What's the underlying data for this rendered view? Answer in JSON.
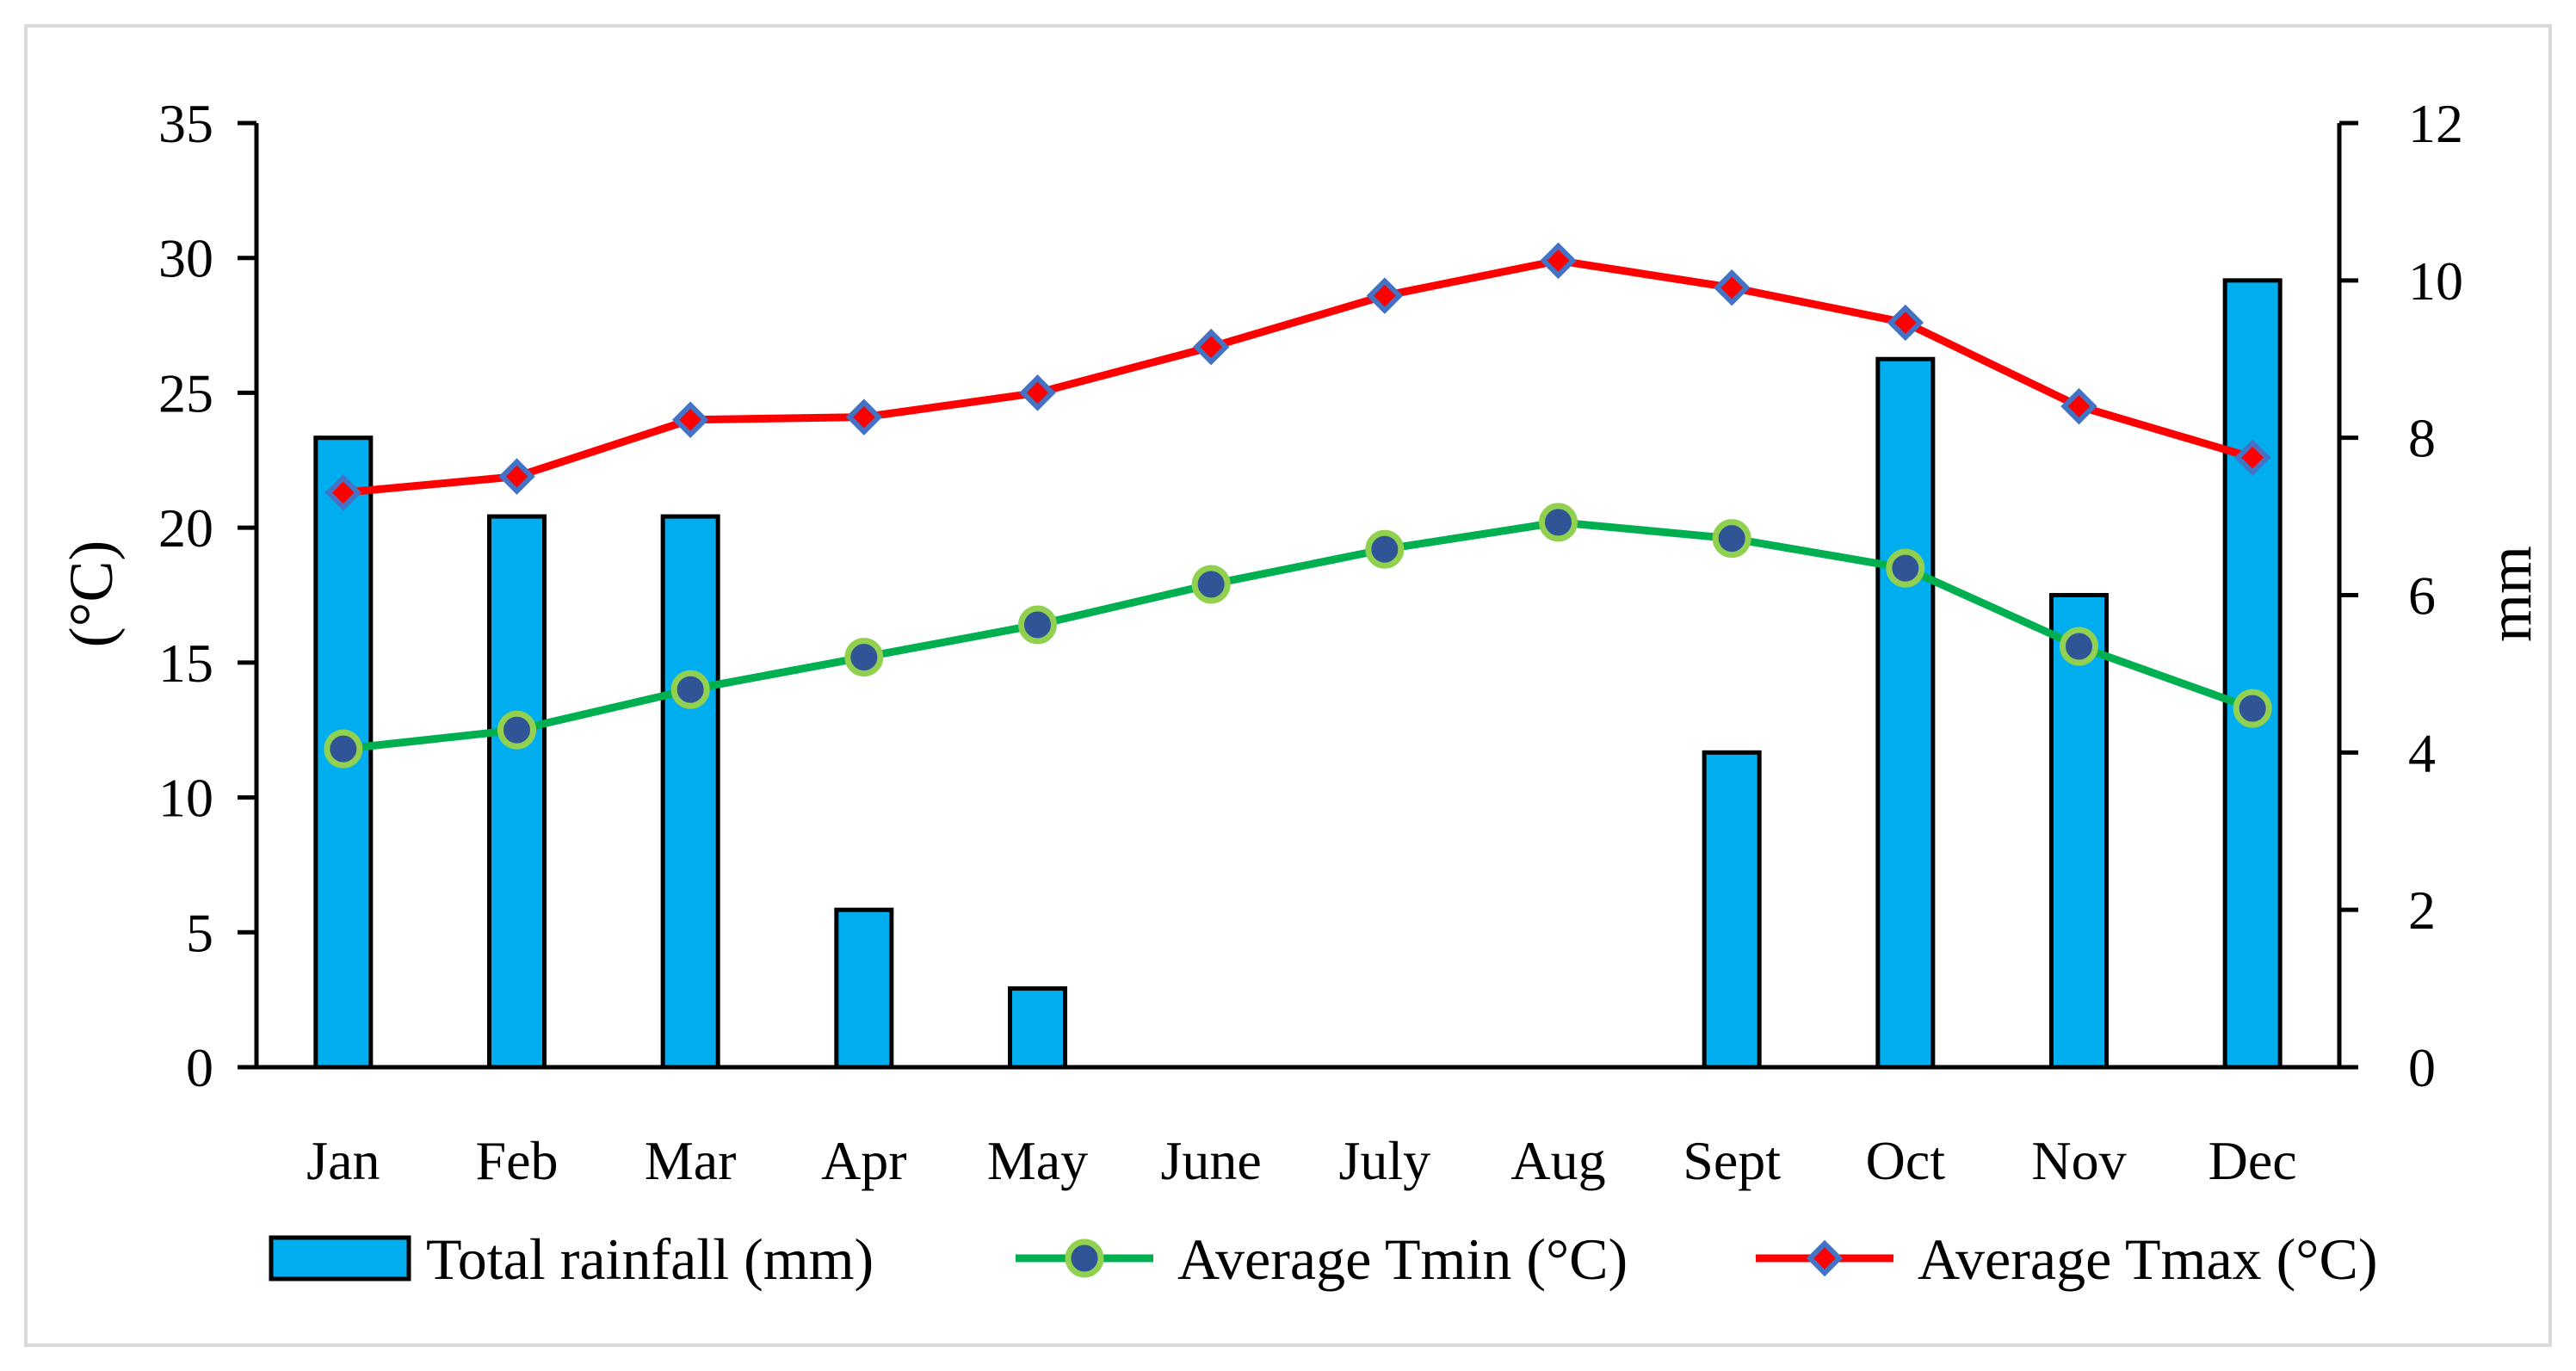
{
  "chart_data": {
    "type": "bar+line",
    "title": "",
    "categories": [
      "Jan",
      "Feb",
      "Mar",
      "Apr",
      "May",
      "June",
      "July",
      "Aug",
      "Sept",
      "Oct",
      "Nov",
      "Dec"
    ],
    "y_left": {
      "label": "(°C)",
      "range": [
        0,
        35
      ],
      "ticks": [
        0,
        5,
        10,
        15,
        20,
        25,
        30,
        35
      ],
      "tick_labels": [
        "0",
        "5",
        "10",
        "15",
        "20",
        "25",
        "30",
        "35"
      ]
    },
    "y_right": {
      "label": "mm",
      "range": [
        0,
        12
      ],
      "ticks": [
        0,
        2,
        4,
        6,
        8,
        10,
        12
      ],
      "tick_labels": [
        "0",
        "2",
        "4",
        "6",
        "8",
        "10",
        "12"
      ]
    },
    "grid": false,
    "legend_position": "bottom",
    "series": [
      {
        "name": "Total rainfall (mm)",
        "kind": "bar",
        "axis": "right",
        "color": "#00AEEF",
        "values": [
          8,
          7,
          7,
          2,
          1,
          0,
          0,
          0,
          4,
          9,
          6,
          10
        ]
      },
      {
        "name": "Average Tmin (°C)",
        "kind": "line",
        "axis": "left",
        "color": "#00B050",
        "marker": "circle",
        "marker_fill": "#2F5597",
        "marker_edge": "#92D050",
        "values": [
          11.8,
          12.5,
          14.0,
          15.2,
          16.4,
          17.9,
          19.2,
          20.2,
          19.6,
          18.5,
          15.6,
          13.3
        ]
      },
      {
        "name": "Average Tmax (°C)",
        "kind": "line",
        "axis": "left",
        "color": "#FF0000",
        "marker": "diamond",
        "marker_fill": "#FF0000",
        "marker_edge": "#4472C4",
        "values": [
          21.3,
          21.9,
          24.0,
          24.1,
          25.0,
          26.7,
          28.6,
          29.9,
          28.9,
          27.6,
          24.5,
          22.6
        ]
      }
    ]
  }
}
